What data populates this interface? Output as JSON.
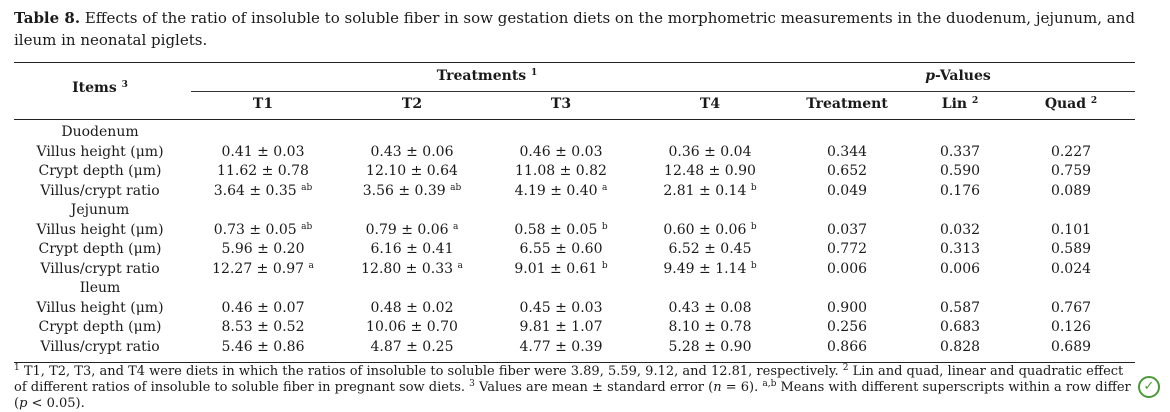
{
  "caption": {
    "label": "Table 8.",
    "text": "Effects of the ratio of insoluble to soluble fiber in sow gestation diets on the morphometric measurements in the duodenum, jejunum, and ileum in neonatal piglets."
  },
  "header": {
    "items": "Items",
    "items_sup": "3",
    "treatments": "Treatments",
    "treatments_sup": "1",
    "pvalues_italic": "p",
    "pvalues_rest": "-Values",
    "t1": "T1",
    "t2": "T2",
    "t3": "T3",
    "t4": "T4",
    "treatment": "Treatment",
    "lin": "Lin",
    "lin_sup": "2",
    "quad": "Quad",
    "quad_sup": "2"
  },
  "sections": {
    "duodenum": "Duodenum",
    "jejunum": "Jejunum",
    "ileum": "Ileum"
  },
  "rows": [
    {
      "item": "Villus height (μm)",
      "t1": "0.41 ± 0.03",
      "t1s": "",
      "t2": "0.43 ± 0.06",
      "t2s": "",
      "t3": "0.46 ± 0.03",
      "t3s": "",
      "t4": "0.36 ± 0.04",
      "t4s": "",
      "p": "0.344",
      "lin": "0.337",
      "quad": "0.227"
    },
    {
      "item": "Crypt depth (μm)",
      "t1": "11.62 ± 0.78",
      "t1s": "",
      "t2": "12.10 ± 0.64",
      "t2s": "",
      "t3": "11.08 ± 0.82",
      "t3s": "",
      "t4": "12.48 ± 0.90",
      "t4s": "",
      "p": "0.652",
      "lin": "0.590",
      "quad": "0.759"
    },
    {
      "item": "Villus/crypt ratio",
      "t1": "3.64 ± 0.35",
      "t1s": "ab",
      "t2": "3.56 ± 0.39",
      "t2s": "ab",
      "t3": "4.19 ± 0.40",
      "t3s": "a",
      "t4": "2.81 ± 0.14",
      "t4s": "b",
      "p": "0.049",
      "lin": "0.176",
      "quad": "0.089"
    },
    {
      "item": "Villus height (μm)",
      "t1": "0.73 ± 0.05",
      "t1s": "ab",
      "t2": "0.79 ± 0.06",
      "t2s": "a",
      "t3": "0.58 ± 0.05",
      "t3s": "b",
      "t4": "0.60 ± 0.06",
      "t4s": "b",
      "p": "0.037",
      "lin": "0.032",
      "quad": "0.101"
    },
    {
      "item": "Crypt depth (μm)",
      "t1": "5.96 ± 0.20",
      "t1s": "",
      "t2": "6.16 ± 0.41",
      "t2s": "",
      "t3": "6.55 ± 0.60",
      "t3s": "",
      "t4": "6.52 ± 0.45",
      "t4s": "",
      "p": "0.772",
      "lin": "0.313",
      "quad": "0.589"
    },
    {
      "item": "Villus/crypt ratio",
      "t1": "12.27 ± 0.97",
      "t1s": "a",
      "t2": "12.80 ± 0.33",
      "t2s": "a",
      "t3": "9.01 ± 0.61",
      "t3s": "b",
      "t4": "9.49 ± 1.14",
      "t4s": "b",
      "p": "0.006",
      "lin": "0.006",
      "quad": "0.024"
    },
    {
      "item": "Villus height (μm)",
      "t1": "0.46 ± 0.07",
      "t1s": "",
      "t2": "0.48 ± 0.02",
      "t2s": "",
      "t3": "0.45 ± 0.03",
      "t3s": "",
      "t4": "0.43 ± 0.08",
      "t4s": "",
      "p": "0.900",
      "lin": "0.587",
      "quad": "0.767"
    },
    {
      "item": "Crypt depth (μm)",
      "t1": "8.53 ± 0.52",
      "t1s": "",
      "t2": "10.06 ± 0.70",
      "t2s": "",
      "t3": "9.81 ± 1.07",
      "t3s": "",
      "t4": "8.10 ± 0.78",
      "t4s": "",
      "p": "0.256",
      "lin": "0.683",
      "quad": "0.126"
    },
    {
      "item": "Villus/crypt ratio",
      "t1": "5.46 ± 0.86",
      "t1s": "",
      "t2": "4.87 ± 0.25",
      "t2s": "",
      "t3": "4.77 ± 0.39",
      "t3s": "",
      "t4": "5.28 ± 0.90",
      "t4s": "",
      "p": "0.866",
      "lin": "0.828",
      "quad": "0.689"
    }
  ],
  "footnote": {
    "s1": "1",
    "t1": " T1, T2, T3, and T4 were diets in which the ratios of insoluble to soluble fiber were 3.89, 5.59, 9.12, and 12.81, respectively. ",
    "s2": "2",
    "t2": " Lin and quad, linear and quadratic effect of different ratios of insoluble to soluble fiber in pregnant sow diets. ",
    "s3": "3",
    "t3a": " Values are mean ± standard error (",
    "n": "n",
    "t3b": " = 6). ",
    "sab": "a,b",
    "t4a": " Means with different superscripts within a row differ (",
    "p": "p",
    "t4b": " < 0.05)."
  },
  "badge": {
    "icon": "check-badge-icon",
    "glyph": "✓",
    "color": "#4a9a3a"
  }
}
